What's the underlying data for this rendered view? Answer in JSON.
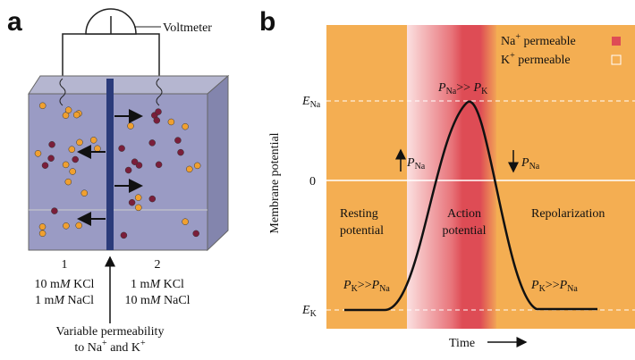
{
  "panel_a": {
    "letter": "a",
    "voltmeter": "Voltmeter",
    "side_1": {
      "number": "1",
      "line_1": [
        "10 m",
        "M",
        " KCl"
      ],
      "line_2": [
        "1 m",
        "M",
        " NaCl"
      ]
    },
    "side_2": {
      "number": "2",
      "line_1": [
        "1 m",
        "M",
        " KCl"
      ],
      "line_2": [
        "10 m",
        "M",
        " NaCl"
      ]
    },
    "caption": {
      "line_1": "Variable permeability",
      "line_2": [
        "to Na",
        "+",
        " and K",
        "+"
      ]
    }
  },
  "panel_b": {
    "letter": "b",
    "legend": {
      "na": [
        "Na",
        "+",
        " permeable"
      ],
      "k": [
        "K",
        "+",
        " permeable"
      ]
    },
    "y_axis_title": "Membrane potential",
    "x_axis_title": "Time",
    "levels": {
      "e_na": [
        "E",
        "Na"
      ],
      "zero": "0",
      "e_k": [
        "E",
        "K"
      ]
    },
    "peak_label": [
      "P",
      "Na",
      ">> ",
      "P",
      "K"
    ],
    "rise_label": [
      "P",
      "Na"
    ],
    "fall_label": [
      "P",
      "Na"
    ],
    "phases": {
      "resting": [
        "Resting",
        "potential"
      ],
      "action": [
        "Action",
        "potential"
      ],
      "repolarization": "Repolarization"
    },
    "start_label": [
      "P",
      "K",
      ">>",
      "P",
      "Na"
    ],
    "end_label": [
      "P",
      "K",
      ">>",
      "P",
      "Na"
    ]
  }
}
